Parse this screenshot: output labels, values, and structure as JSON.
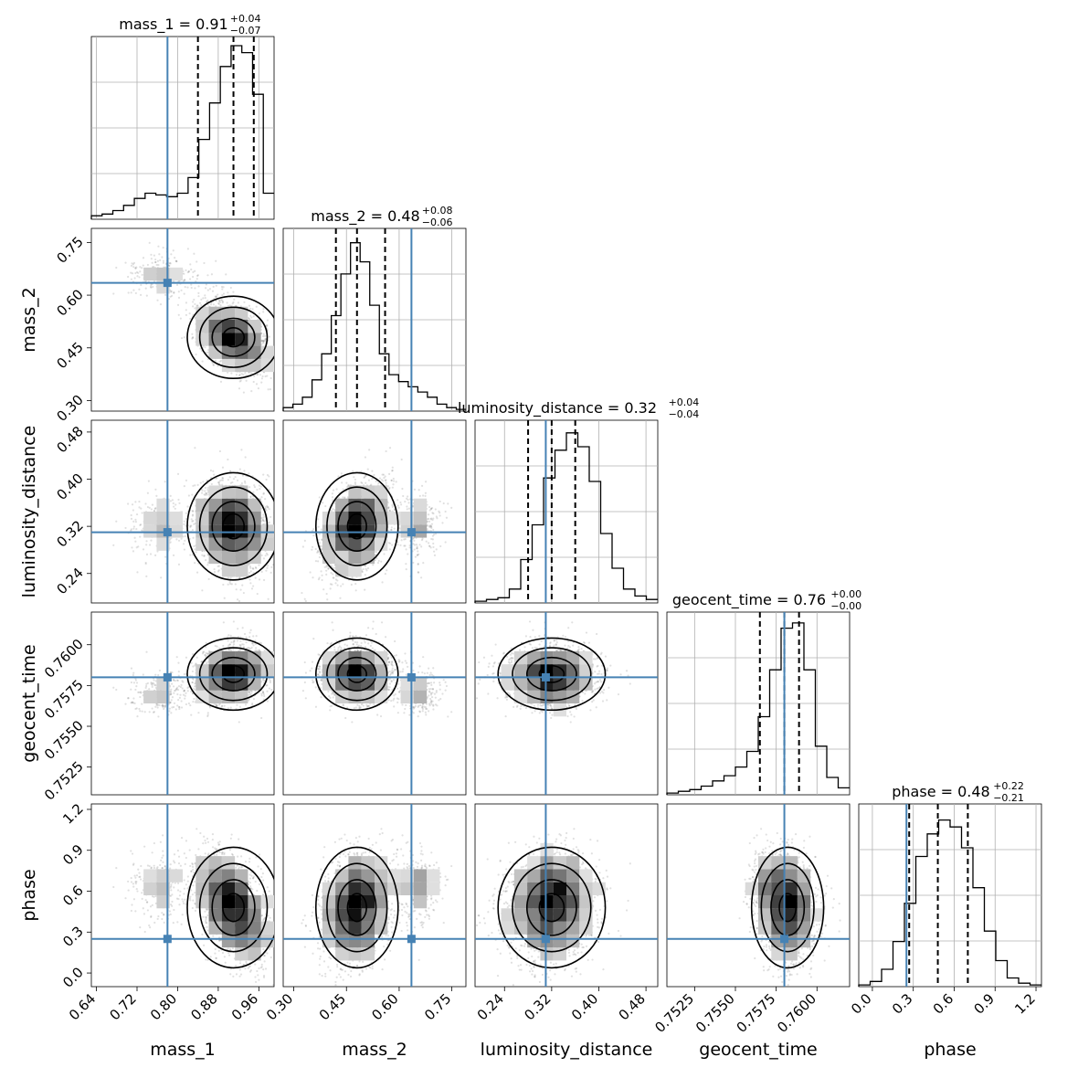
{
  "chart_data": {
    "type": "corner",
    "parameters": [
      "mass_1",
      "mass_2",
      "luminosity_distance",
      "geocent_time",
      "phase"
    ],
    "truth_color": "#4682b4",
    "truths": {
      "mass_1": 0.78,
      "mass_2": 0.635,
      "luminosity_distance": 0.31,
      "geocent_time": 0.758,
      "phase": 0.25
    },
    "titles": [
      {
        "param": "mass_1",
        "main": "mass_1 = 0.91",
        "up": "+0.04",
        "down": "−0.07"
      },
      {
        "param": "mass_2",
        "main": "mass_2 = 0.48",
        "up": "+0.08",
        "down": "−0.06"
      },
      {
        "param": "luminosity_distance",
        "main": "luminosity_distance = 0.32",
        "up": "+0.04",
        "down": "−0.04"
      },
      {
        "param": "geocent_time",
        "main": "geocent_time = 0.76",
        "up": "+0.00",
        "down": "−0.00"
      },
      {
        "param": "phase",
        "main": "phase = 0.48",
        "up": "+0.22",
        "down": "−0.21"
      }
    ],
    "xlabels": [
      "mass_1",
      "mass_2",
      "luminosity_distance",
      "geocent_time",
      "phase"
    ],
    "ylabels": [
      "mass_2",
      "luminosity_distance",
      "geocent_time",
      "phase"
    ],
    "tick_labels": {
      "mass_1": [
        "0.64",
        "0.72",
        "0.80",
        "0.88",
        "0.96"
      ],
      "mass_2": [
        "0.30",
        "0.45",
        "0.60",
        "0.75"
      ],
      "luminosity_distance": [
        "0.24",
        "0.32",
        "0.40",
        "0.48"
      ],
      "geocent_time": [
        "0.7525",
        "0.7550",
        "0.7575",
        "0.7600"
      ],
      "phase": [
        "0.0",
        "0.3",
        "0.6",
        "0.9",
        "1.2"
      ]
    },
    "ranges": {
      "mass_1": [
        0.63,
        0.99
      ],
      "mass_2": [
        0.27,
        0.79
      ],
      "luminosity_distance": [
        0.19,
        0.5
      ],
      "geocent_time": [
        0.7508,
        0.762
      ],
      "phase": [
        -0.1,
        1.24
      ]
    },
    "quantiles": {
      "mass_1": [
        0.84,
        0.91,
        0.95
      ],
      "mass_2": [
        0.42,
        0.48,
        0.56
      ],
      "luminosity_distance": [
        0.28,
        0.32,
        0.36
      ],
      "geocent_time": [
        0.7565,
        0.758,
        0.7589
      ],
      "phase": [
        0.27,
        0.48,
        0.7
      ]
    },
    "histograms": {
      "mass_1": [
        0.02,
        0.03,
        0.05,
        0.08,
        0.12,
        0.15,
        0.14,
        0.13,
        0.15,
        0.24,
        0.46,
        0.67,
        0.88,
        1.0,
        0.96,
        0.72,
        0.15
      ],
      "mass_2": [
        0.02,
        0.04,
        0.08,
        0.18,
        0.33,
        0.55,
        0.79,
        0.97,
        0.86,
        0.61,
        0.33,
        0.21,
        0.17,
        0.14,
        0.11,
        0.08,
        0.04,
        0.02,
        0.01
      ],
      "luminosity_distance": [
        0.01,
        0.02,
        0.03,
        0.08,
        0.25,
        0.45,
        0.72,
        0.88,
        0.98,
        0.9,
        0.7,
        0.4,
        0.2,
        0.08,
        0.04,
        0.02
      ],
      "geocent_time": [
        0.01,
        0.02,
        0.03,
        0.05,
        0.08,
        0.11,
        0.16,
        0.25,
        0.45,
        0.72,
        0.96,
        0.99,
        0.72,
        0.28,
        0.1,
        0.04
      ],
      "phase": [
        0.01,
        0.03,
        0.1,
        0.26,
        0.48,
        0.75,
        0.88,
        0.96,
        0.92,
        0.8,
        0.57,
        0.32,
        0.15,
        0.05,
        0.02,
        0.01
      ]
    },
    "grid": true
  }
}
